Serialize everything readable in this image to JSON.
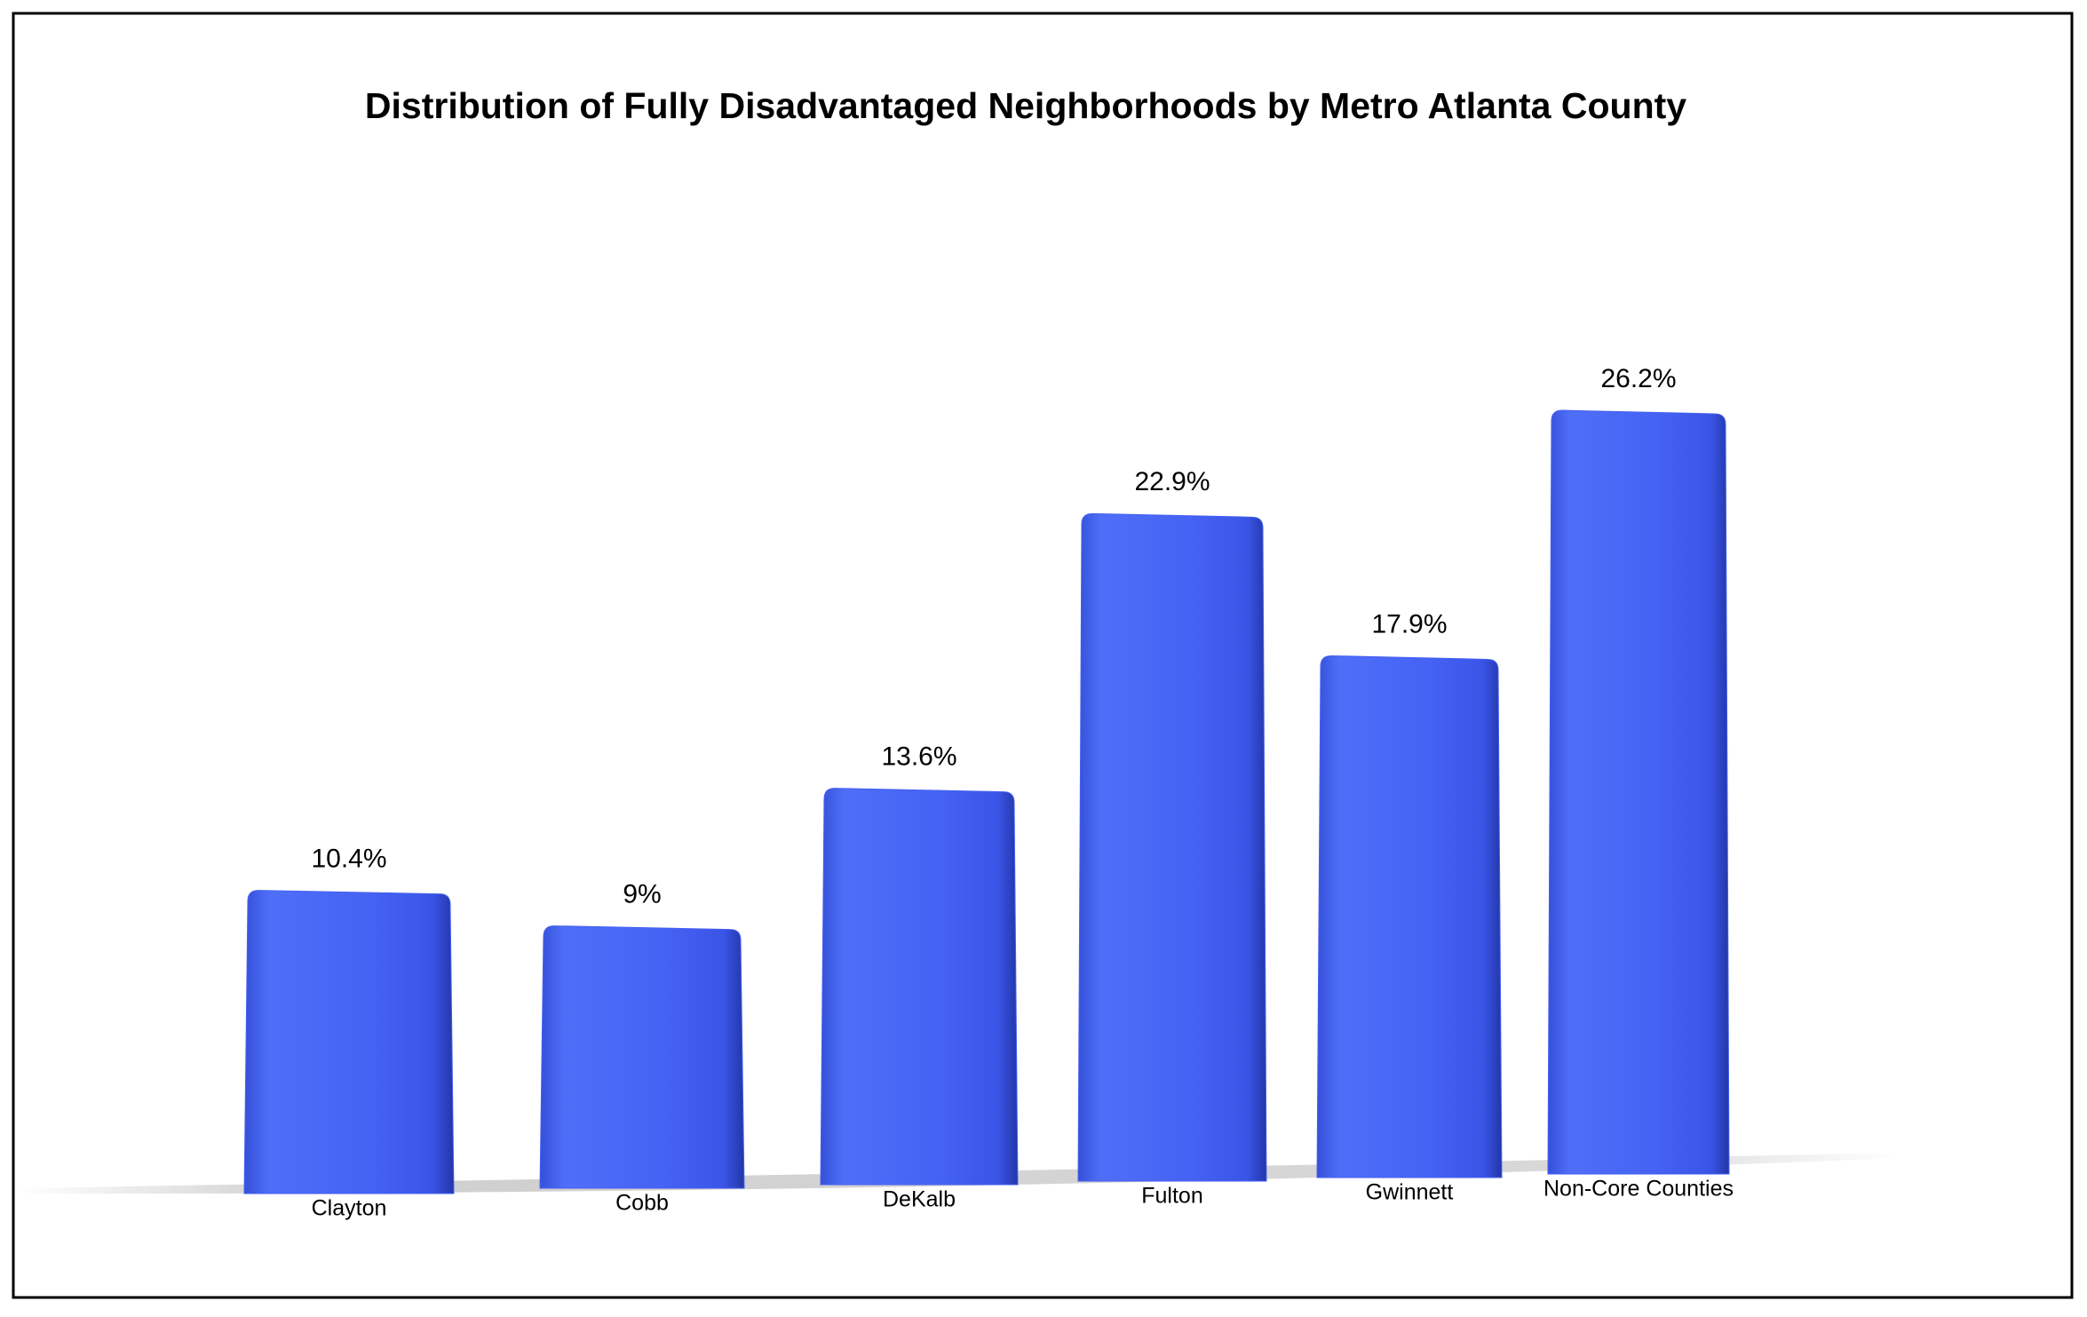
{
  "chart_data": {
    "type": "bar",
    "title": "Distribution of Fully Disadvantaged Neighborhoods by Metro Atlanta County",
    "categories": [
      "Clayton",
      "Cobb",
      "DeKalb",
      "Fulton",
      "Gwinnett",
      "Non-Core Counties"
    ],
    "values": [
      10.4,
      9,
      13.6,
      22.9,
      17.9,
      26.2
    ],
    "value_labels": [
      "10.4%",
      "9%",
      "13.6%",
      "22.9%",
      "17.9%",
      "26.2%"
    ],
    "color": "#4560f0"
  }
}
